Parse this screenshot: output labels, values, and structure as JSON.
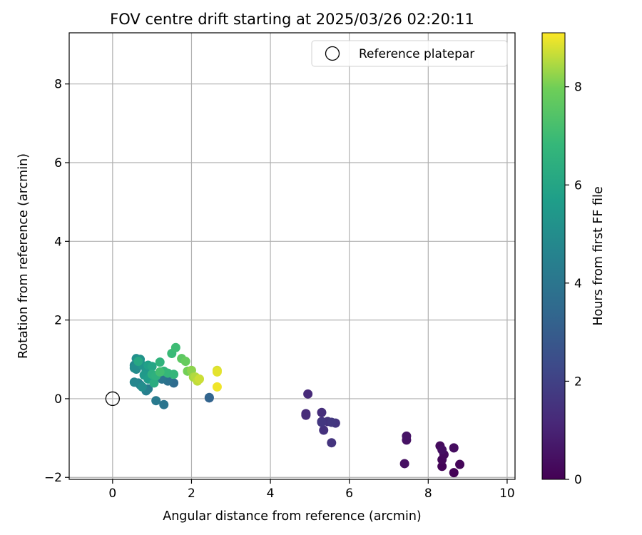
{
  "chart_data": {
    "type": "scatter",
    "title": "FOV centre drift starting at 2025/03/26 02:20:11",
    "xlabel": "Angular distance from reference (arcmin)",
    "ylabel": "Rotation from reference (arcmin)",
    "xlim": [
      -1.1,
      10.2
    ],
    "ylim": [
      -2.05,
      9.3
    ],
    "xticks": [
      "0",
      "2",
      "4",
      "6",
      "8",
      "10"
    ],
    "yticks": [
      "−2",
      "0",
      "2",
      "4",
      "6",
      "8"
    ],
    "grid": true,
    "legend": {
      "position": "top-right",
      "entries": [
        "Reference platepar"
      ]
    },
    "reference": {
      "x": 0,
      "y": 0,
      "marker": "open-circle",
      "label": "Reference platepar"
    },
    "colorbar": {
      "label": "Hours from first FF file",
      "ticks": [
        "0",
        "2",
        "4",
        "6",
        "8"
      ],
      "range": [
        0,
        9.1
      ],
      "colormap": "viridis"
    },
    "x": [
      8.65,
      8.35,
      8.8,
      8.35,
      8.4,
      8.3,
      8.65,
      8.35,
      7.4,
      7.45,
      7.45,
      4.95,
      4.9,
      4.9,
      5.3,
      5.3,
      5.35,
      5.45,
      5.55,
      5.65,
      5.3,
      5.55,
      2.45,
      2.45,
      1.55,
      1.4,
      1.3,
      1.25,
      1.1,
      0.9,
      0.85,
      0.7,
      0.65,
      0.55,
      0.55,
      0.6,
      0.75,
      0.55,
      0.6,
      0.7,
      0.75,
      0.85,
      0.8,
      0.9,
      0.95,
      0.9,
      1.0,
      0.65,
      1.05,
      1.0,
      1.1,
      1.2,
      1.3,
      1.4,
      1.5,
      1.6,
      1.2,
      1.75,
      1.85,
      1.9,
      2.0,
      2.05,
      2.1,
      2.15,
      2.2,
      2.65,
      2.65,
      2.65,
      1.55
    ],
    "y": [
      -1.88,
      -1.72,
      -1.67,
      -1.55,
      -1.42,
      -1.2,
      -1.25,
      -1.3,
      -1.65,
      -1.05,
      -0.95,
      0.12,
      -0.38,
      -0.42,
      -0.35,
      -0.58,
      -0.8,
      -0.58,
      -1.12,
      -0.62,
      -0.6,
      -0.6,
      0.02,
      0.03,
      0.4,
      0.45,
      -0.15,
      0.5,
      -0.05,
      0.25,
      0.2,
      0.35,
      0.4,
      0.42,
      0.85,
      0.75,
      0.3,
      0.78,
      1.02,
      1.0,
      0.85,
      0.7,
      0.6,
      0.5,
      0.55,
      0.85,
      0.82,
      0.95,
      0.4,
      0.62,
      0.58,
      0.93,
      0.7,
      0.65,
      1.15,
      1.3,
      0.68,
      1.02,
      0.95,
      0.7,
      0.72,
      0.55,
      0.55,
      0.45,
      0.5,
      0.72,
      0.68,
      0.3,
      0.62
    ],
    "hours": [
      0.05,
      0.1,
      0.15,
      0.2,
      0.25,
      0.3,
      0.35,
      0.4,
      0.45,
      0.5,
      0.55,
      1.2,
      1.25,
      1.3,
      1.35,
      1.4,
      1.45,
      1.5,
      1.55,
      1.6,
      1.65,
      1.7,
      3.0,
      3.3,
      3.6,
      3.8,
      4.0,
      4.0,
      4.2,
      4.3,
      4.4,
      4.5,
      4.6,
      4.7,
      4.8,
      4.9,
      5.0,
      5.0,
      5.1,
      5.2,
      5.3,
      5.4,
      5.5,
      5.6,
      5.7,
      5.8,
      6.0,
      6.1,
      6.3,
      6.4,
      6.5,
      6.6,
      6.7,
      6.8,
      6.9,
      7.0,
      7.1,
      7.6,
      7.8,
      8.0,
      8.2,
      8.4,
      8.5,
      8.6,
      8.7,
      8.8,
      8.9,
      9.0,
      6.8
    ]
  }
}
